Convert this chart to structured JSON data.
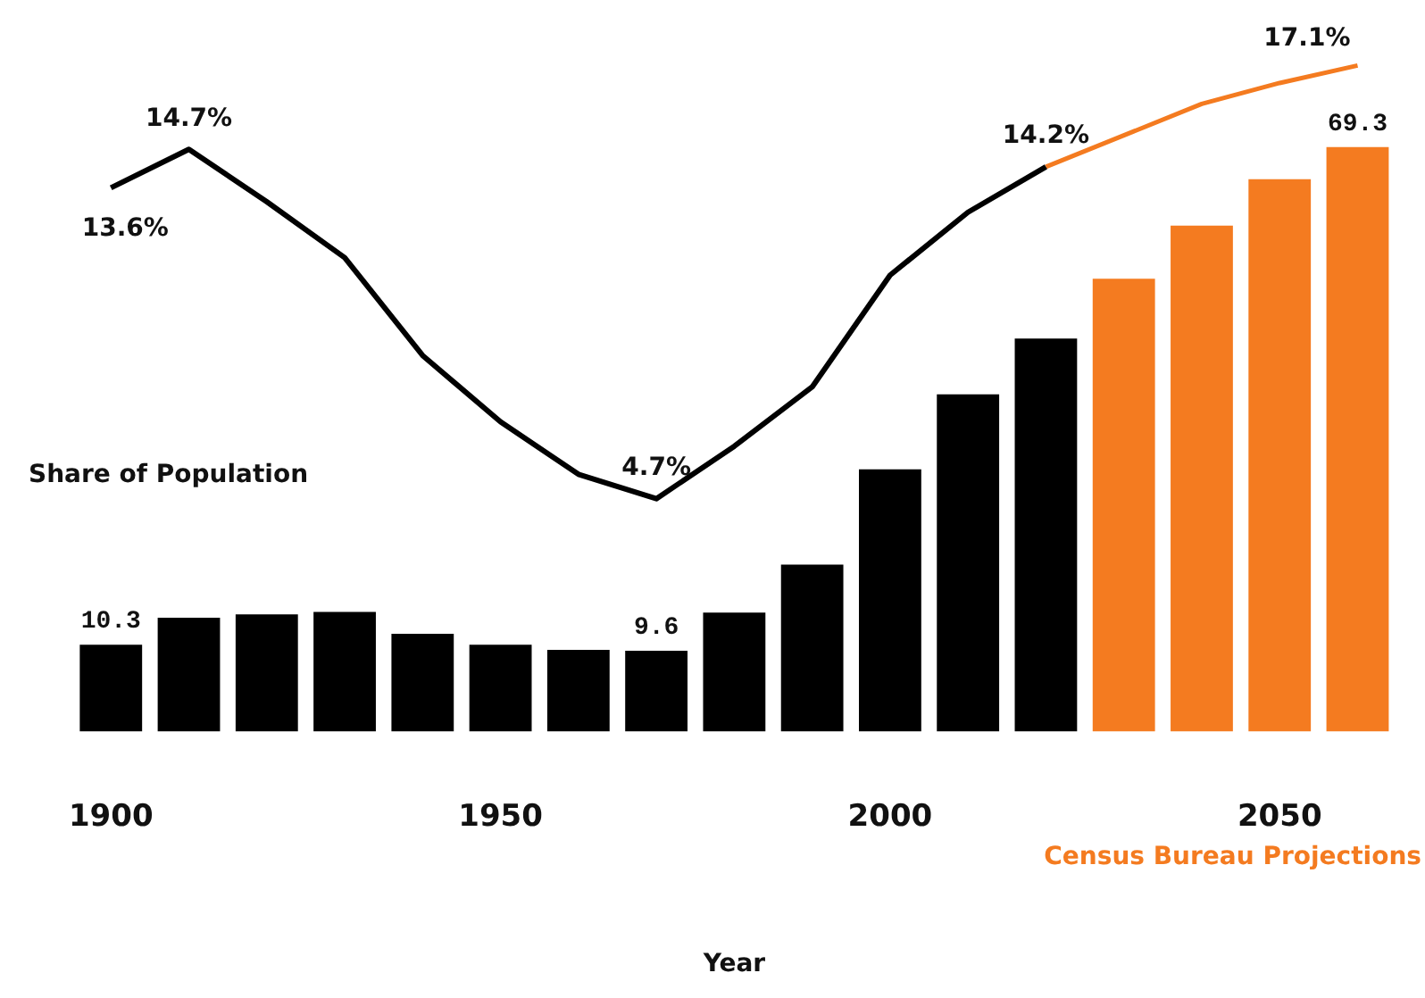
{
  "chart_data": {
    "type": "bar",
    "xlabel": "Year",
    "categories": [
      "1900",
      null,
      null,
      null,
      null,
      "1950",
      null,
      null,
      null,
      null,
      "2000",
      null,
      null,
      null,
      null,
      "2050",
      null
    ],
    "series": [
      {
        "colors": [
          "#000000",
          "#000000",
          "#000000",
          "#000000",
          "#000000",
          "#000000",
          "#000000",
          "#000000",
          "#000000",
          "#000000",
          "#000000",
          "#000000",
          "#000000",
          "#f47b20",
          "#f47b20",
          "#f47b20",
          "#f47b20"
        ],
        "values": [
          10.3,
          13.5,
          13.9,
          14.2,
          11.6,
          10.3,
          9.7,
          9.6,
          14.1,
          19.8,
          31.1,
          40.0,
          46.6,
          53.7,
          60.0,
          65.5,
          69.3
        ],
        "value_labels": [
          "10.3",
          null,
          null,
          null,
          null,
          null,
          null,
          "9.6",
          null,
          null,
          null,
          null,
          null,
          null,
          null,
          null,
          "69.3"
        ]
      },
      {
        "type": "line",
        "axis": "y2",
        "color": "#000000",
        "values": [
          13.6,
          14.7,
          13.2,
          11.6,
          8.8,
          6.9,
          5.4,
          4.7,
          6.2,
          7.9,
          11.1,
          12.9,
          14.2,
          null,
          null,
          null,
          null
        ],
        "value_labels": [
          "13.6%",
          "14.7%",
          null,
          null,
          null,
          null,
          null,
          "4.7%",
          null,
          null,
          null,
          null,
          "14.2%",
          null,
          null,
          null,
          null
        ]
      },
      {
        "type": "line",
        "axis": "y2",
        "color": "#f47b20",
        "values": [
          null,
          null,
          null,
          null,
          null,
          null,
          null,
          null,
          null,
          null,
          null,
          null,
          14.2,
          15.1,
          16.0,
          16.6,
          17.1
        ],
        "value_labels": [
          null,
          null,
          null,
          null,
          null,
          null,
          null,
          null,
          null,
          null,
          null,
          null,
          null,
          null,
          null,
          null,
          "17.1%"
        ]
      }
    ],
    "annotations": [
      "Share of Population",
      "Census Bureau Projections"
    ],
    "grid": false,
    "legend": false,
    "marker": "none",
    "line_style": "solid"
  }
}
